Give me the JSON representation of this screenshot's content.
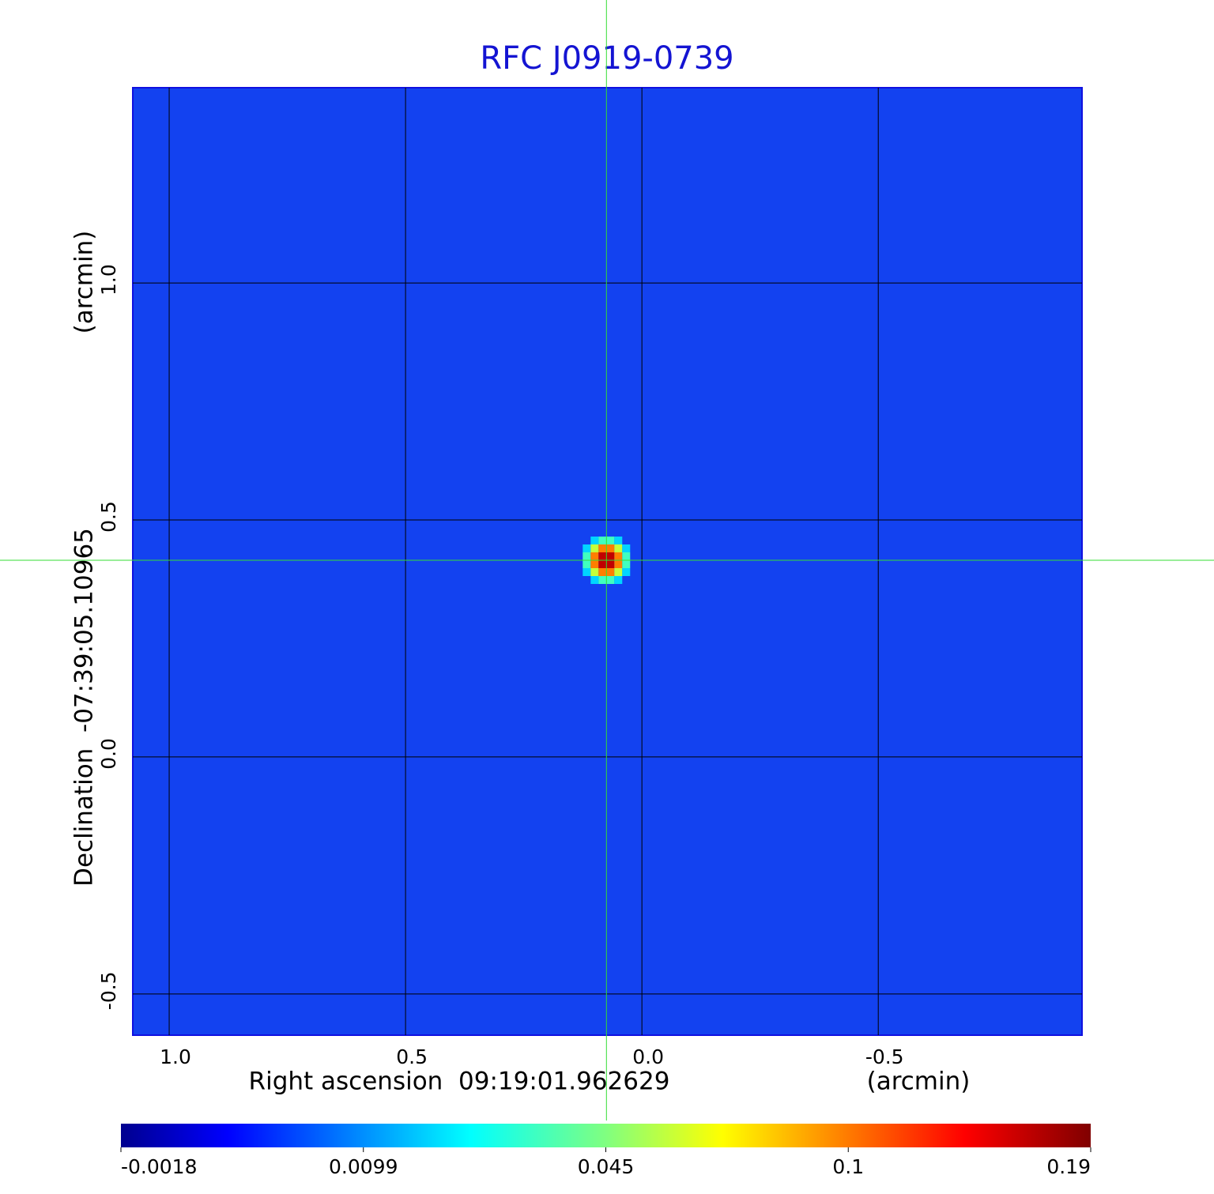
{
  "chart_data": {
    "type": "image",
    "title": "RFC J0919-0739",
    "x_label": "Right ascension  09:19:01.962629",
    "x_unit": "(arcmin)",
    "y_label": "Declination  -07:39:05.10965",
    "y_unit": "(arcmin)",
    "xlim": [
      1.077,
      -0.931
    ],
    "ylim": [
      -0.587,
      1.412
    ],
    "xticks": [
      {
        "value": 1.0,
        "label": "1.0"
      },
      0.5,
      {
        "value": 0.0,
        "label": "0.0"
      },
      -0.5
    ],
    "yticks": [
      -0.5,
      {
        "value": 0.0,
        "label": "0.0"
      },
      0.5,
      {
        "value": 1.0,
        "label": "1.0"
      }
    ],
    "grid": true,
    "source": {
      "x": 0.075,
      "y": 0.415,
      "peak": 0.19
    },
    "colorbar_ticks": [
      -0.0018,
      0.0099,
      0.045,
      0.1,
      0.19
    ],
    "colormap": "jet"
  }
}
